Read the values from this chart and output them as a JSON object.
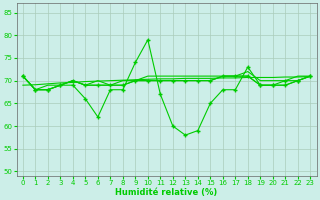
{
  "xlabel": "Humidité relative (%)",
  "bg_color": "#cceee8",
  "grid_color": "#aaccbb",
  "line_color": "#00cc00",
  "xlim": [
    -0.5,
    23.5
  ],
  "ylim": [
    49,
    87
  ],
  "yticks": [
    50,
    55,
    60,
    65,
    70,
    75,
    80,
    85
  ],
  "xticks": [
    0,
    1,
    2,
    3,
    4,
    5,
    6,
    7,
    8,
    9,
    10,
    11,
    12,
    13,
    14,
    15,
    16,
    17,
    18,
    19,
    20,
    21,
    22,
    23
  ],
  "s_big": [
    71,
    68,
    68,
    69,
    69,
    66,
    62,
    68,
    68,
    74,
    79,
    67,
    60,
    58,
    59,
    65,
    68,
    68,
    73,
    69,
    69,
    70,
    70,
    71
  ],
  "s_flat1": [
    71,
    68,
    68,
    69,
    70,
    69,
    69,
    69,
    69,
    70,
    70,
    70,
    70,
    70,
    70,
    70,
    71,
    71,
    71,
    69,
    69,
    69,
    70,
    71
  ],
  "s_flat2": [
    71,
    68,
    68,
    69,
    70,
    69,
    69,
    69,
    69,
    70,
    70,
    70,
    70,
    70,
    70,
    70,
    71,
    71,
    71,
    69,
    69,
    69,
    70,
    71
  ],
  "s_flat3": [
    71,
    68,
    69,
    69,
    70,
    69,
    70,
    69,
    70,
    70,
    71,
    71,
    71,
    71,
    71,
    71,
    71,
    71,
    72,
    70,
    70,
    70,
    71,
    71
  ],
  "s_reg": [
    69.0,
    69.1,
    69.3,
    69.5,
    69.6,
    69.8,
    69.9,
    70.0,
    70.1,
    70.2,
    70.3,
    70.4,
    70.4,
    70.5,
    70.5,
    70.5,
    70.6,
    70.6,
    70.7,
    70.7,
    70.7,
    70.8,
    70.8,
    70.9
  ]
}
